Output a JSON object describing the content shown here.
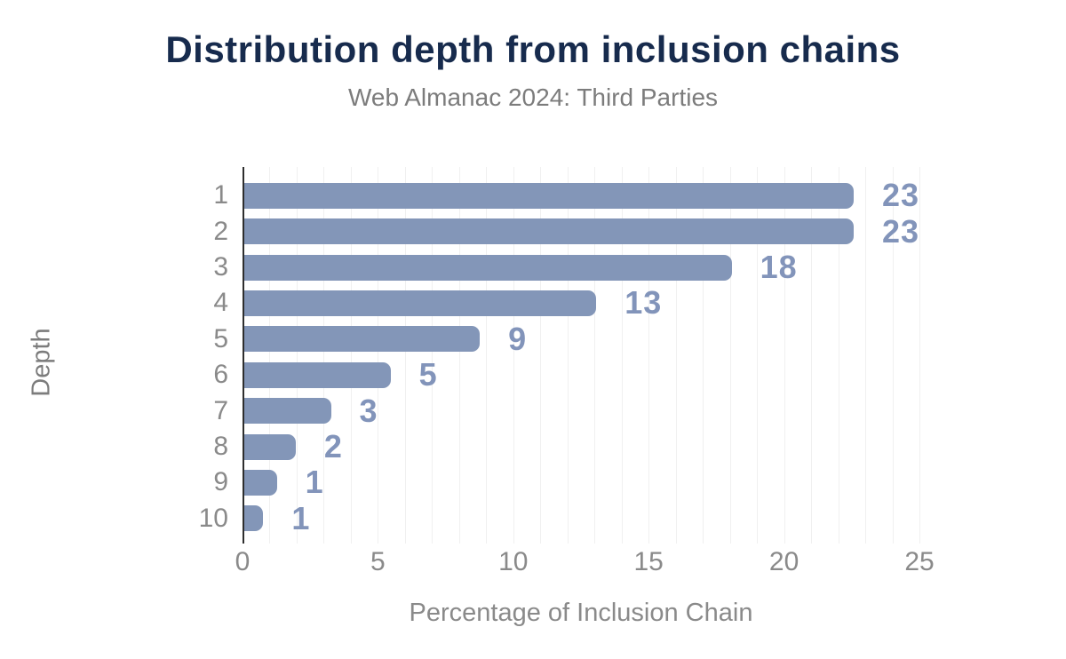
{
  "chart_data": {
    "type": "bar",
    "orientation": "horizontal",
    "title": "Distribution depth from inclusion chains",
    "subtitle": "Web Almanac 2024: Third Parties",
    "xlabel": "Percentage of Inclusion Chain",
    "ylabel": "Depth",
    "categories": [
      "1",
      "2",
      "3",
      "4",
      "5",
      "6",
      "7",
      "8",
      "9",
      "10"
    ],
    "values": [
      23.2,
      22.6,
      18.0,
      13.0,
      8.7,
      5.4,
      3.2,
      1.9,
      1.2,
      0.7
    ],
    "value_labels": [
      "23",
      "23",
      "18",
      "13",
      "9",
      "5",
      "3",
      "2",
      "1",
      "1"
    ],
    "xlim": [
      0,
      25
    ],
    "xticks": [
      0,
      5,
      10,
      15,
      20,
      25
    ],
    "grid": {
      "vertical_step": 1,
      "horizontal": false
    },
    "legend": "none",
    "colors": {
      "bar": "#8396b8",
      "value_label": "#8294ba",
      "title": "#172b4d",
      "subtitle": "#7c7c7c",
      "axis_text": "#8a8a8a",
      "axis_line": "#2e2e2e",
      "gridline": "#f0f0f0"
    }
  }
}
